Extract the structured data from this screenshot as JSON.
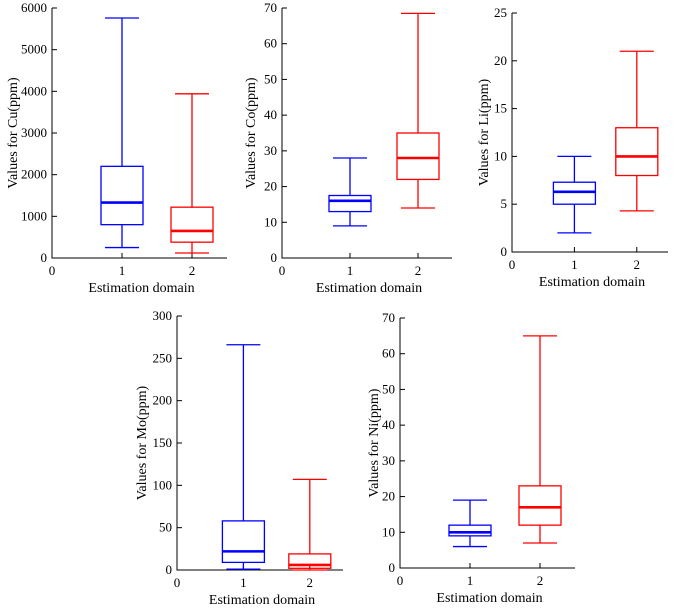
{
  "chart_data": [
    {
      "type": "box",
      "id": "cu",
      "ylabel": "Values for Cu(ppm)",
      "xlabel": "Estimation domain",
      "ylim": [
        0,
        6000
      ],
      "yticks": [
        "0",
        "1000",
        "2000",
        "3000",
        "4000",
        "5000",
        "6000"
      ],
      "xlim": [
        0,
        2.5
      ],
      "xticks": [
        "0",
        "1",
        "2"
      ],
      "series": [
        {
          "name": "1",
          "color": "#0000ff",
          "min": 250,
          "q1": 800,
          "median": 1330,
          "q3": 2200,
          "max": 5760
        },
        {
          "name": "2",
          "color": "#ff0000",
          "min": 120,
          "q1": 380,
          "median": 650,
          "q3": 1220,
          "max": 3940
        }
      ]
    },
    {
      "type": "box",
      "id": "co",
      "ylabel": "Values for Co(ppm)",
      "xlabel": "Estimation domain",
      "ylim": [
        0,
        70
      ],
      "yticks": [
        "0",
        "10",
        "20",
        "30",
        "40",
        "50",
        "60",
        "70"
      ],
      "xlim": [
        0,
        2.5
      ],
      "xticks": [
        "0",
        "1",
        "2"
      ],
      "series": [
        {
          "name": "1",
          "color": "#0000ff",
          "min": 9,
          "q1": 13,
          "median": 16,
          "q3": 17.5,
          "max": 28
        },
        {
          "name": "2",
          "color": "#ff0000",
          "min": 14,
          "q1": 22,
          "median": 28,
          "q3": 35,
          "max": 68.5
        }
      ]
    },
    {
      "type": "box",
      "id": "li",
      "ylabel": "Values for Li(ppm)",
      "xlabel": "Estimation domain",
      "ylim": [
        0,
        25
      ],
      "yticks": [
        "0",
        "5",
        "10",
        "15",
        "20",
        "25"
      ],
      "xlim": [
        0,
        2.5
      ],
      "xticks": [
        "0",
        "1",
        "2"
      ],
      "series": [
        {
          "name": "1",
          "color": "#0000ff",
          "min": 2,
          "q1": 5,
          "median": 6.3,
          "q3": 7.3,
          "max": 10
        },
        {
          "name": "2",
          "color": "#ff0000",
          "min": 4.3,
          "q1": 8,
          "median": 10,
          "q3": 13,
          "max": 21
        }
      ]
    },
    {
      "type": "box",
      "id": "mo",
      "ylabel": "Values for Mo(ppm)",
      "xlabel": "Estimation domain",
      "ylim": [
        0,
        300
      ],
      "yticks": [
        "0",
        "50",
        "100",
        "150",
        "200",
        "250",
        "300"
      ],
      "xlim": [
        0,
        2.5
      ],
      "xticks": [
        "0",
        "1",
        "2"
      ],
      "series": [
        {
          "name": "1",
          "color": "#0000ff",
          "min": 1,
          "q1": 9,
          "median": 22,
          "q3": 58,
          "max": 266
        },
        {
          "name": "2",
          "color": "#ff0000",
          "min": 0,
          "q1": 2,
          "median": 6,
          "q3": 19,
          "max": 107
        }
      ]
    },
    {
      "type": "box",
      "id": "ni",
      "ylabel": "Values for Ni(ppm)",
      "xlabel": "Estimation domain",
      "ylim": [
        0,
        70
      ],
      "yticks": [
        "0",
        "10",
        "20",
        "30",
        "40",
        "50",
        "60",
        "70"
      ],
      "xlim": [
        0,
        2.5
      ],
      "xticks": [
        "0",
        "1",
        "2"
      ],
      "series": [
        {
          "name": "1",
          "color": "#0000ff",
          "min": 6,
          "q1": 9,
          "median": 10,
          "q3": 12,
          "max": 19
        },
        {
          "name": "2",
          "color": "#ff0000",
          "min": 7,
          "q1": 12,
          "median": 17,
          "q3": 23,
          "max": 65
        }
      ]
    }
  ]
}
